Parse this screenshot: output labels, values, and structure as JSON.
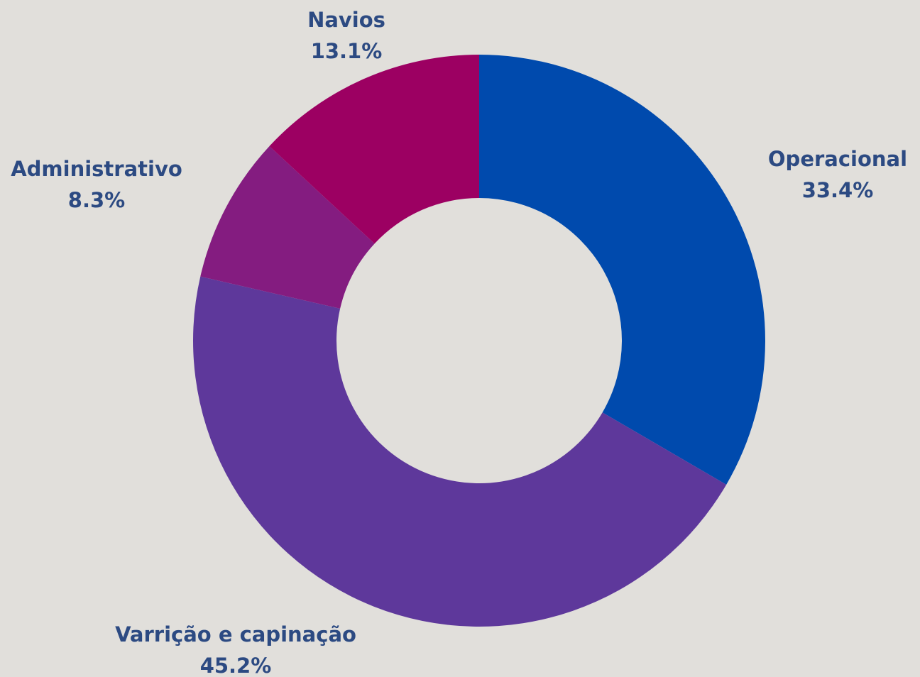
{
  "chart_data": {
    "type": "pie",
    "categories": [
      "Operacional",
      "Varrição e capinação",
      "Administrativo",
      "Navios"
    ],
    "values": [
      33.4,
      45.2,
      8.3,
      13.1
    ],
    "value_labels": [
      "33.4%",
      "45.2%",
      "8.3%",
      "13.1%"
    ],
    "colors": [
      "#004aad",
      "#5e389b",
      "#841c80",
      "#9c0062"
    ]
  }
}
